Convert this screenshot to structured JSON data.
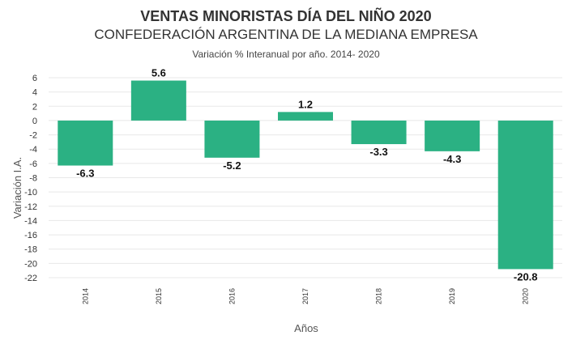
{
  "chart_data": {
    "type": "bar",
    "title": "VENTAS MINORISTAS DÍA DEL NIÑO 2020",
    "subtitle": "CONFEDERACIÓN ARGENTINA DE LA MEDIANA EMPRESA",
    "note": "Variación % Interanual por año. 2014- 2020",
    "xlabel": "Años",
    "ylabel": "Variación I.A.",
    "categories": [
      "2014",
      "2015",
      "2016",
      "2017",
      "2018",
      "2019",
      "2020"
    ],
    "values": [
      -6.3,
      5.6,
      -5.2,
      1.2,
      -3.3,
      -4.3,
      -20.8
    ],
    "data_labels": [
      "-6.3",
      "5.6",
      "-5.2",
      "1.2",
      "-3.3",
      "-4.3",
      "-20.8"
    ],
    "yticks": [
      6,
      4,
      2,
      0,
      -2,
      -4,
      -6,
      -8,
      -10,
      -12,
      -14,
      -16,
      -18,
      -20,
      -22
    ],
    "ylim": [
      -22,
      6
    ],
    "grid": true,
    "bar_color": "#2bb183"
  }
}
